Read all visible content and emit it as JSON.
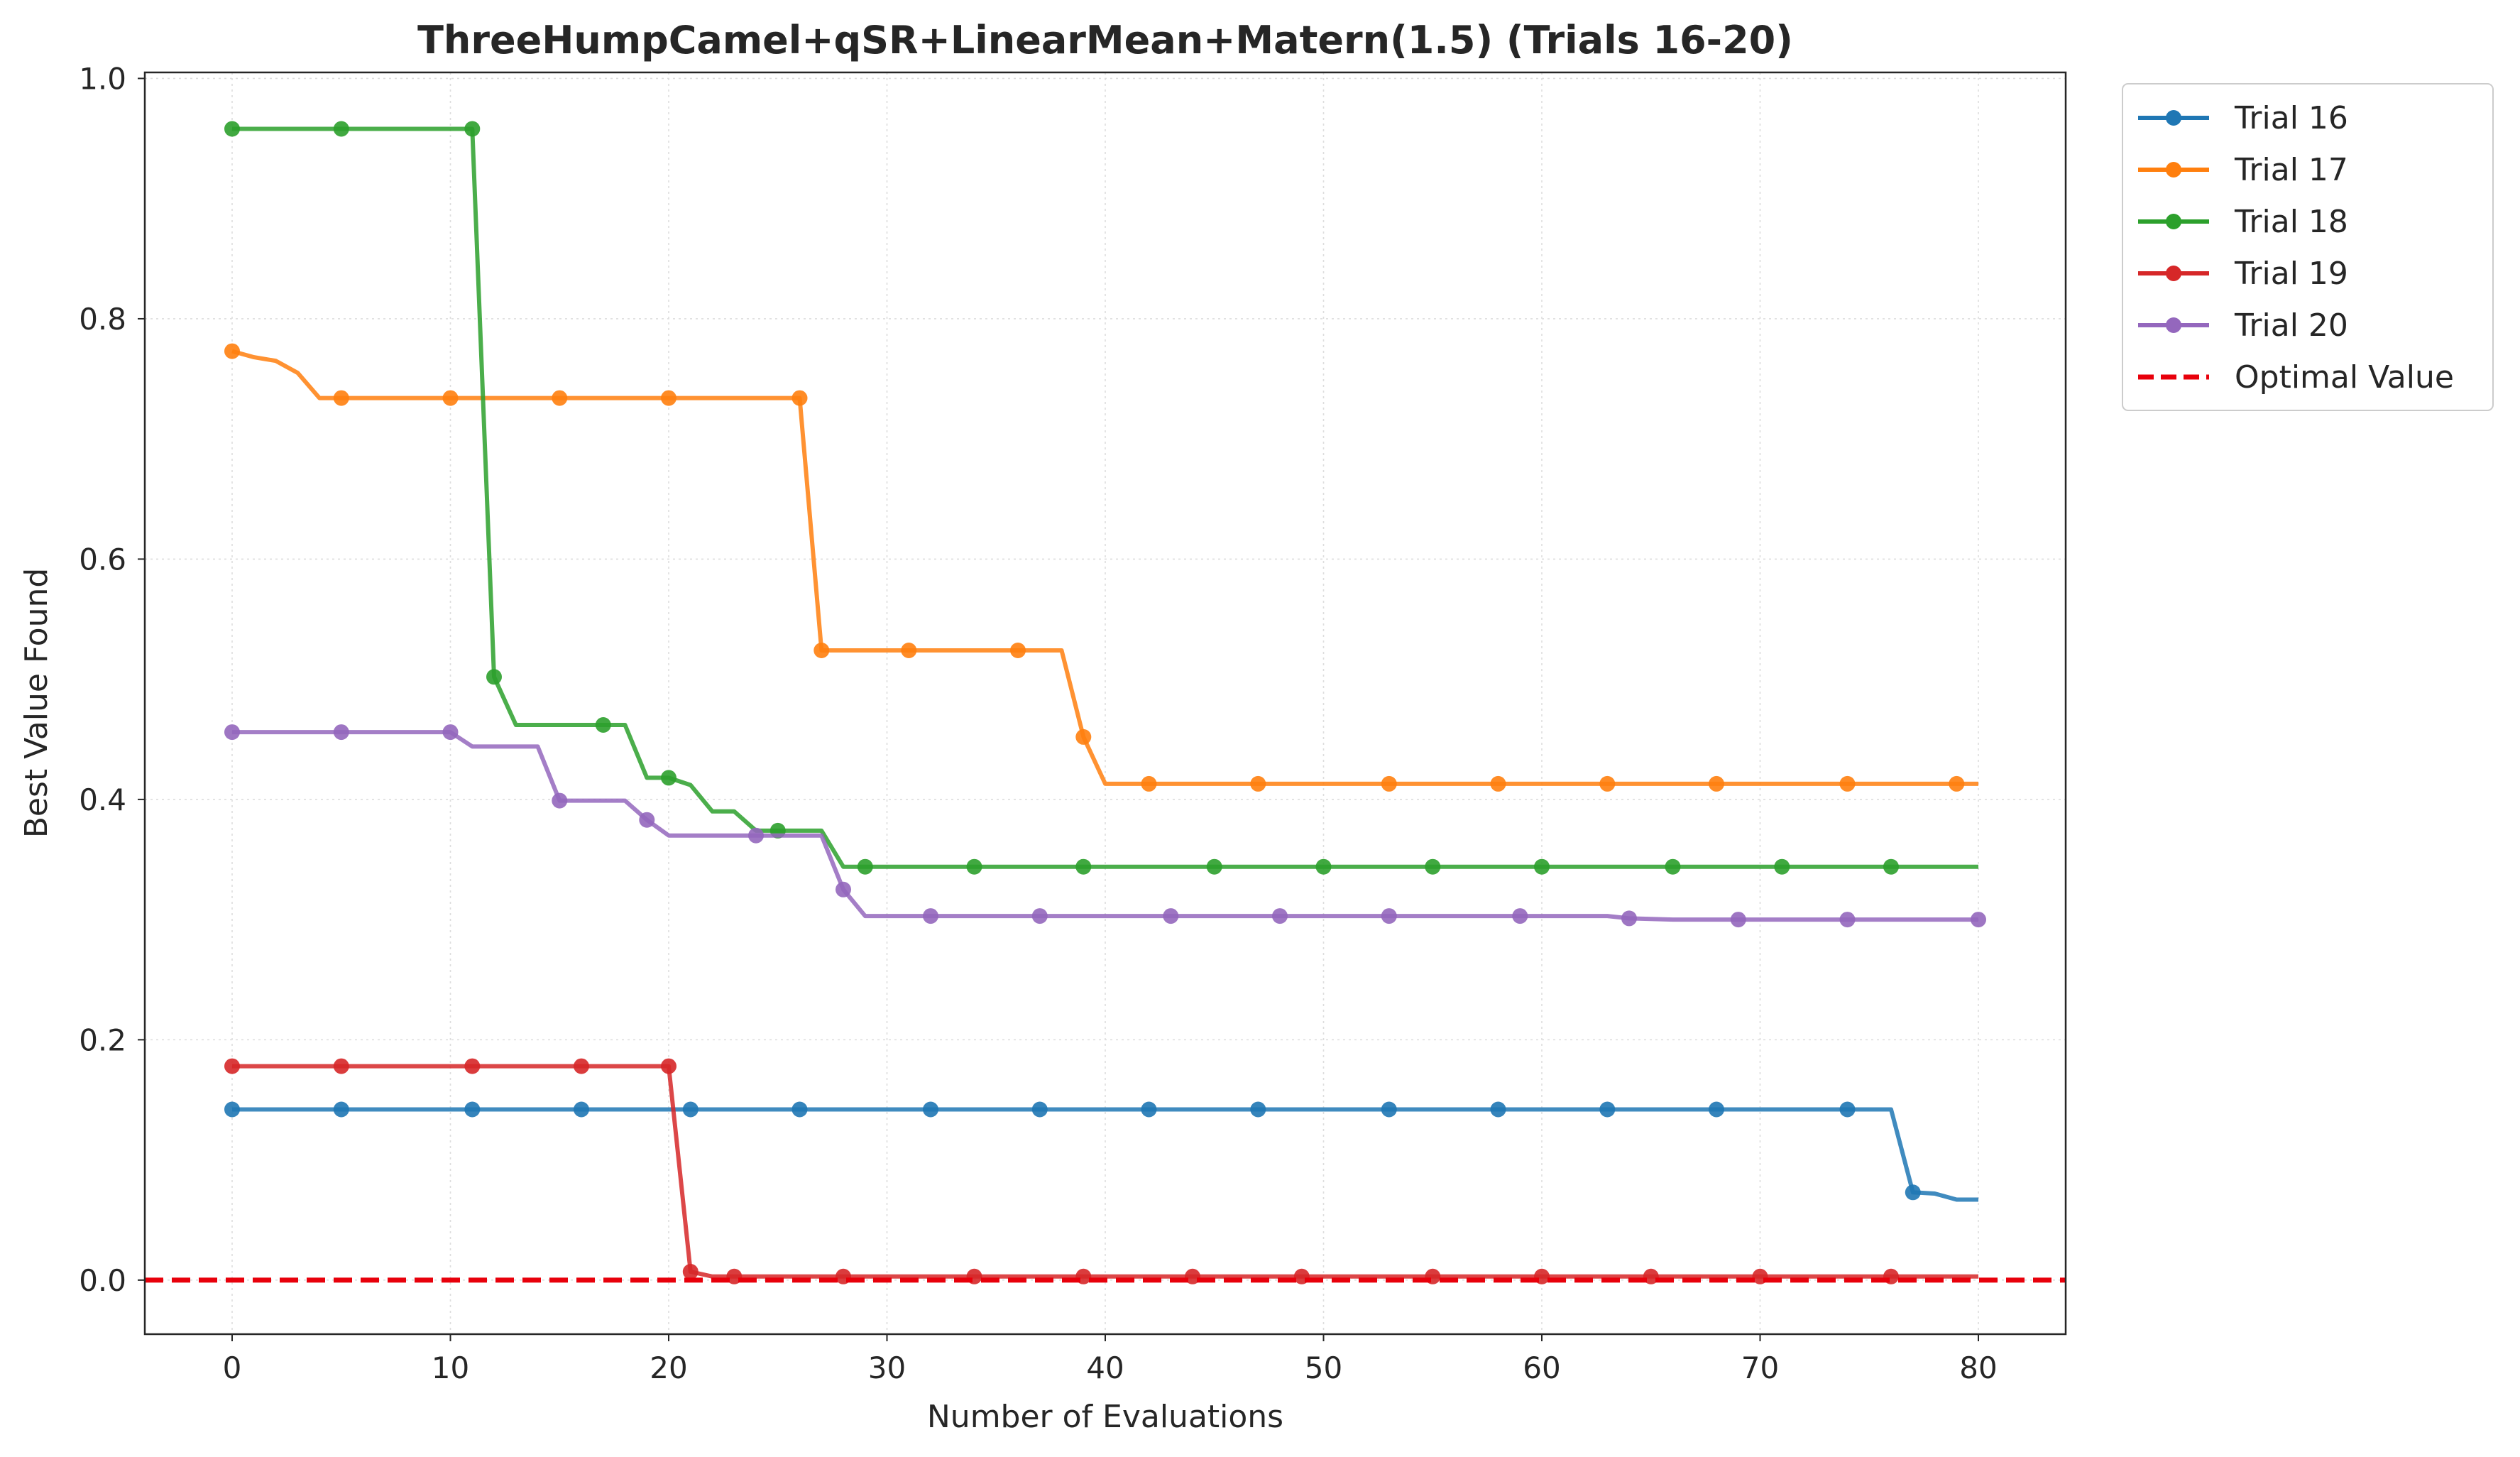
{
  "chart_data": {
    "type": "line",
    "title": "ThreeHumpCamel+qSR+LinearMean+Matern(1.5) (Trials 16-20)",
    "xlabel": "Number of Evaluations",
    "ylabel": "Best Value Found",
    "xlim": [
      -4,
      84
    ],
    "ylim": [
      -0.045,
      1.005
    ],
    "xticks": [
      0,
      10,
      20,
      30,
      40,
      50,
      60,
      70,
      80
    ],
    "yticks": [
      0.0,
      0.2,
      0.4,
      0.6,
      0.8,
      1.0
    ],
    "xtick_labels": [
      "0",
      "10",
      "20",
      "30",
      "40",
      "50",
      "60",
      "70",
      "80"
    ],
    "ytick_labels": [
      "0.0",
      "0.2",
      "0.4",
      "0.6",
      "0.8",
      "1.0"
    ],
    "grid": true,
    "legend_position": "outside-top-right",
    "series": [
      {
        "name": "Trial 16",
        "color": "#1f77b4",
        "x": [
          0,
          76,
          77,
          78,
          79,
          80
        ],
        "y": [
          0.142,
          0.142,
          0.073,
          0.072,
          0.067,
          0.067
        ],
        "marker_x": [
          0,
          5,
          11,
          16,
          21,
          26,
          32,
          37,
          42,
          47,
          53,
          58,
          63,
          68,
          74,
          77
        ],
        "marker_y": [
          0.142,
          0.142,
          0.142,
          0.142,
          0.142,
          0.142,
          0.142,
          0.142,
          0.142,
          0.142,
          0.142,
          0.142,
          0.142,
          0.142,
          0.142,
          0.073
        ]
      },
      {
        "name": "Trial 17",
        "color": "#ff7f0e",
        "x": [
          0,
          1,
          2,
          3,
          4,
          26,
          27,
          38,
          39,
          40,
          80
        ],
        "y": [
          0.773,
          0.768,
          0.765,
          0.755,
          0.734,
          0.734,
          0.524,
          0.524,
          0.452,
          0.413,
          0.413
        ],
        "marker_x": [
          0,
          5,
          10,
          15,
          20,
          26,
          27,
          31,
          36,
          39,
          42,
          47,
          53,
          58,
          63,
          68,
          74,
          79
        ],
        "marker_y": [
          0.773,
          0.734,
          0.734,
          0.734,
          0.734,
          0.734,
          0.524,
          0.524,
          0.524,
          0.452,
          0.413,
          0.413,
          0.413,
          0.413,
          0.413,
          0.413,
          0.413,
          0.413
        ]
      },
      {
        "name": "Trial 18",
        "color": "#2ca02c",
        "x": [
          0,
          11,
          12,
          13,
          18,
          19,
          20,
          21,
          22,
          23,
          24,
          27,
          28,
          80
        ],
        "y": [
          0.958,
          0.958,
          0.502,
          0.462,
          0.462,
          0.418,
          0.418,
          0.412,
          0.39,
          0.39,
          0.374,
          0.374,
          0.344,
          0.344
        ],
        "marker_x": [
          0,
          5,
          11,
          12,
          17,
          20,
          25,
          29,
          34,
          39,
          45,
          50,
          55,
          60,
          66,
          71,
          76
        ],
        "marker_y": [
          0.958,
          0.958,
          0.958,
          0.502,
          0.462,
          0.418,
          0.374,
          0.344,
          0.344,
          0.344,
          0.344,
          0.344,
          0.344,
          0.344,
          0.344,
          0.344,
          0.344
        ]
      },
      {
        "name": "Trial 19",
        "color": "#d62728",
        "x": [
          0,
          20,
          21,
          22,
          80
        ],
        "y": [
          0.178,
          0.178,
          0.007,
          0.003,
          0.003
        ],
        "marker_x": [
          0,
          5,
          11,
          16,
          20,
          21,
          23,
          28,
          34,
          39,
          44,
          49,
          55,
          60,
          65,
          70,
          76
        ],
        "marker_y": [
          0.178,
          0.178,
          0.178,
          0.178,
          0.178,
          0.007,
          0.003,
          0.003,
          0.003,
          0.003,
          0.003,
          0.003,
          0.003,
          0.003,
          0.003,
          0.003,
          0.003
        ]
      },
      {
        "name": "Trial 20",
        "color": "#9467bd",
        "x": [
          0,
          10,
          11,
          14,
          15,
          18,
          19,
          20,
          27,
          28,
          29,
          63,
          64,
          66,
          80
        ],
        "y": [
          0.456,
          0.456,
          0.444,
          0.444,
          0.399,
          0.399,
          0.383,
          0.37,
          0.37,
          0.325,
          0.303,
          0.303,
          0.301,
          0.3,
          0.3
        ],
        "marker_x": [
          0,
          5,
          10,
          15,
          19,
          24,
          28,
          32,
          37,
          43,
          48,
          53,
          59,
          64,
          69,
          74,
          80
        ],
        "marker_y": [
          0.456,
          0.456,
          0.456,
          0.399,
          0.383,
          0.37,
          0.325,
          0.303,
          0.303,
          0.303,
          0.303,
          0.303,
          0.303,
          0.301,
          0.3,
          0.3,
          0.3
        ]
      }
    ],
    "reference_line": {
      "name": "Optimal Value",
      "y": 0.0,
      "color": "#e8000b",
      "style": "dashed"
    }
  }
}
